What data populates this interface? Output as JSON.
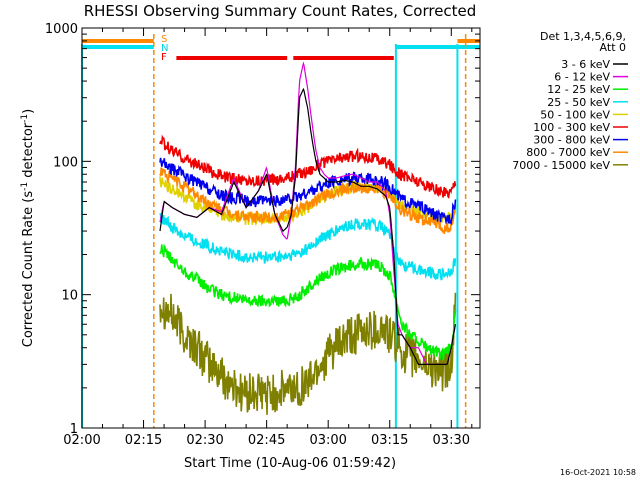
{
  "chart_data": {
    "type": "line",
    "title": "RHESSI Observing Summary Count Rates, Corrected",
    "xlabel": "Start Time (10-Aug-06 01:59:42)",
    "ylabel": "Corrected Count Rate (s",
    "ylabel_sup1": "-1",
    "ylabel_mid": " detector",
    "ylabel_sup2": "-1",
    "ylabel_end": ")",
    "yscale": "log",
    "ylim": [
      1,
      1000
    ],
    "xlim_minutes": [
      0,
      97
    ],
    "x_ticks": [
      {
        "label": "02:00",
        "minute": 0
      },
      {
        "label": "02:15",
        "minute": 15
      },
      {
        "label": "02:30",
        "minute": 30
      },
      {
        "label": "02:45",
        "minute": 45
      },
      {
        "label": "03:00",
        "minute": 60
      },
      {
        "label": "03:15",
        "minute": 75
      },
      {
        "label": "03:30",
        "minute": 90
      }
    ],
    "y_ticks": [
      {
        "label": "1",
        "value": 1
      },
      {
        "label": "10",
        "value": 10
      },
      {
        "label": "100",
        "value": 100
      },
      {
        "label": "1000",
        "value": 1000
      }
    ],
    "legend_header": [
      "Det 1,3,4,5,6,9,",
      "Att 0"
    ],
    "flag_labels": {
      "s": "S",
      "n": "N",
      "f": "F"
    },
    "flags": {
      "saa": [
        [
          0,
          17.5
        ],
        [
          91.5,
          97
        ]
      ],
      "night": [
        [
          0,
          17.5
        ],
        [
          76.5,
          97
        ]
      ],
      "flare": [
        [
          23,
          50
        ],
        [
          51.5,
          76
        ]
      ]
    },
    "orange_dashed_minutes": [
      17.5,
      93.5
    ],
    "cyan_solid_minutes": [
      0,
      76.5,
      91.5
    ],
    "data_start_minute": 19,
    "data_end_minute": 91,
    "series": [
      {
        "name": "3 - 6 keV",
        "color": "#000000",
        "x": [
          19,
          20,
          22,
          25,
          28,
          31,
          34,
          37,
          40,
          43,
          45,
          47,
          49,
          50,
          51,
          52,
          53,
          54,
          55,
          56,
          57,
          58,
          59,
          60,
          61,
          62,
          64,
          66,
          68,
          70,
          72,
          74,
          75,
          76,
          77,
          78,
          80,
          82,
          84,
          86,
          88,
          89,
          90,
          91
        ],
        "values": [
          30,
          50,
          45,
          40,
          38,
          45,
          40,
          70,
          45,
          60,
          80,
          40,
          30,
          32,
          40,
          75,
          300,
          350,
          250,
          150,
          100,
          80,
          75,
          70,
          70,
          70,
          72,
          70,
          65,
          65,
          62,
          55,
          45,
          20,
          5,
          5,
          4,
          3,
          3,
          3,
          3,
          3,
          4,
          6
        ]
      },
      {
        "name": "6 - 12 keV",
        "color": "#dd00dd",
        "x": [
          19,
          20,
          22,
          25,
          28,
          31,
          34,
          37,
          40,
          43,
          45,
          47,
          49,
          50,
          51,
          52,
          53,
          54,
          55,
          56,
          57,
          58,
          59,
          60,
          62,
          64,
          66,
          68,
          70,
          72,
          74,
          75,
          76,
          77,
          78,
          80,
          82,
          84,
          86,
          88,
          89,
          90,
          91
        ],
        "values": [
          35,
          50,
          45,
          40,
          38,
          45,
          42,
          75,
          45,
          60,
          90,
          40,
          28,
          26,
          40,
          90,
          400,
          550,
          350,
          200,
          120,
          90,
          80,
          75,
          75,
          78,
          80,
          75,
          70,
          70,
          60,
          40,
          15,
          6,
          5,
          4,
          4,
          3,
          3,
          3,
          3,
          4,
          6
        ]
      },
      {
        "name": "12 - 25 keV",
        "color": "#00ee00",
        "x": [
          19,
          20,
          22,
          25,
          28,
          31,
          34,
          37,
          40,
          43,
          46,
          49,
          52,
          55,
          58,
          61,
          64,
          67,
          70,
          73,
          75,
          76,
          77,
          78,
          80,
          82,
          84,
          86,
          88,
          90,
          91
        ],
        "values": [
          22,
          21,
          18,
          15,
          13,
          11,
          10,
          9.5,
          9,
          9,
          9,
          9,
          9.5,
          11,
          13.5,
          15,
          16,
          17,
          17,
          16,
          14,
          11,
          8,
          6,
          5,
          4.5,
          4,
          3.7,
          3.5,
          4,
          7
        ]
      },
      {
        "name": "25 - 50 keV",
        "color": "#00e0f0",
        "x": [
          19,
          20,
          22,
          25,
          28,
          31,
          34,
          37,
          40,
          43,
          46,
          49,
          52,
          55,
          58,
          61,
          64,
          67,
          70,
          73,
          75,
          76,
          77,
          78,
          80,
          82,
          84,
          86,
          88,
          90,
          91
        ],
        "values": [
          38,
          36,
          32,
          28,
          25,
          23,
          21,
          20,
          19,
          19,
          19,
          19,
          20,
          22,
          26,
          29,
          32,
          34,
          34,
          32,
          28,
          22,
          18,
          17,
          16,
          15.5,
          15,
          14.5,
          14,
          15,
          18
        ]
      },
      {
        "name": "50 - 100 keV",
        "color": "#e0d000",
        "x": [
          19,
          20,
          22,
          25,
          28,
          31,
          34,
          37,
          40,
          43,
          46,
          49,
          52,
          55,
          58,
          61,
          64,
          67,
          70,
          73,
          75,
          76,
          77,
          78,
          80,
          82,
          84,
          86,
          88,
          90,
          91
        ],
        "values": [
          70,
          68,
          62,
          55,
          48,
          44,
          40,
          38,
          37,
          37,
          37,
          38,
          40,
          45,
          52,
          58,
          62,
          65,
          65,
          63,
          58,
          53,
          48,
          46,
          44,
          42,
          40,
          38,
          37,
          38,
          45
        ]
      },
      {
        "name": "100 - 300 keV",
        "color": "#ee0000",
        "x": [
          19,
          20,
          22,
          25,
          28,
          31,
          34,
          37,
          40,
          43,
          46,
          49,
          52,
          55,
          58,
          61,
          64,
          67,
          70,
          73,
          75,
          76,
          77,
          78,
          80,
          82,
          84,
          86,
          88,
          90,
          91
        ],
        "values": [
          140,
          135,
          120,
          105,
          95,
          85,
          78,
          74,
          72,
          72,
          73,
          75,
          78,
          85,
          95,
          102,
          108,
          110,
          108,
          102,
          95,
          88,
          82,
          78,
          75,
          70,
          66,
          62,
          58,
          60,
          72
        ]
      },
      {
        "name": "300 - 800 keV",
        "color": "#0000ee",
        "x": [
          19,
          20,
          22,
          25,
          28,
          31,
          34,
          37,
          40,
          43,
          46,
          49,
          52,
          55,
          58,
          61,
          64,
          67,
          70,
          73,
          75,
          76,
          77,
          78,
          80,
          82,
          84,
          86,
          88,
          90,
          91
        ],
        "values": [
          100,
          96,
          88,
          78,
          70,
          62,
          56,
          53,
          51,
          50,
          50,
          51,
          53,
          58,
          65,
          70,
          73,
          75,
          74,
          70,
          65,
          60,
          55,
          52,
          49,
          46,
          43,
          40,
          37,
          38,
          50
        ]
      },
      {
        "name": "800 - 7000 keV",
        "color": "#ff8800",
        "x": [
          19,
          20,
          22,
          25,
          28,
          31,
          34,
          37,
          40,
          43,
          46,
          49,
          52,
          55,
          58,
          61,
          64,
          67,
          70,
          73,
          75,
          76,
          77,
          78,
          80,
          82,
          84,
          86,
          88,
          90,
          91
        ],
        "values": [
          85,
          82,
          75,
          65,
          56,
          48,
          43,
          40,
          38,
          38,
          38,
          39,
          42,
          47,
          53,
          58,
          62,
          64,
          63,
          60,
          55,
          50,
          46,
          43,
          40,
          38,
          36,
          34,
          31,
          32,
          42
        ]
      },
      {
        "name": "7000 - 15000 keV",
        "color": "#808000",
        "x": [
          19,
          20,
          22,
          25,
          28,
          31,
          34,
          37,
          40,
          43,
          46,
          49,
          52,
          55,
          58,
          61,
          64,
          67,
          70,
          73,
          75,
          76,
          77,
          78,
          80,
          82,
          84,
          86,
          88,
          90,
          91
        ],
        "values": [
          9,
          8,
          7,
          5,
          4,
          3,
          2.5,
          2,
          1.8,
          1.8,
          1.8,
          1.9,
          2,
          2.2,
          3,
          3.8,
          4.5,
          5,
          5.5,
          5.5,
          5,
          4.5,
          4,
          3.8,
          3.5,
          3.2,
          3,
          2.8,
          2.6,
          3,
          8
        ]
      }
    ]
  },
  "timestamp": "16-Oct-2021 10:58"
}
